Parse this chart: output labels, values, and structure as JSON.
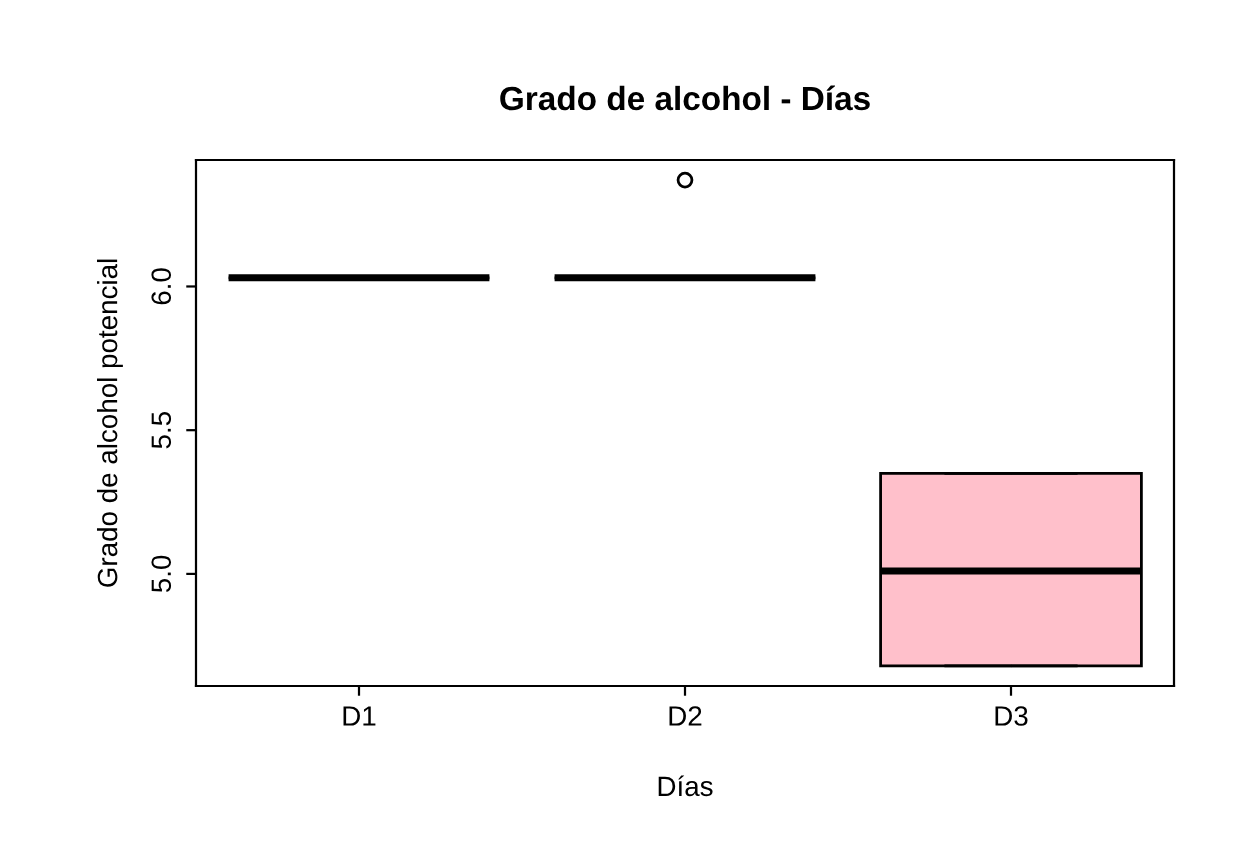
{
  "chart_data": {
    "type": "box",
    "title": "Grado de alcohol - Días",
    "xlabel": "Días",
    "ylabel": "Grado de alcohol potencial",
    "categories": [
      "D1",
      "D2",
      "D3"
    ],
    "boxes": [
      {
        "low": 6.03,
        "q1": 6.03,
        "median": 6.03,
        "q3": 6.03,
        "high": 6.03
      },
      {
        "low": 6.03,
        "q1": 6.03,
        "median": 6.03,
        "q3": 6.03,
        "high": 6.03,
        "outliers": [
          6.37
        ]
      },
      {
        "low": 4.68,
        "q1": 4.68,
        "median": 5.01,
        "q3": 5.35,
        "high": 5.35
      }
    ],
    "colors": [
      null,
      null,
      "#ffc0cb"
    ],
    "ylim": [
      4.61,
      6.44
    ],
    "yticks": [
      {
        "value": 5.0,
        "label": "5.0"
      },
      {
        "value": 5.5,
        "label": "5.5"
      },
      {
        "value": 6.0,
        "label": "6.0"
      }
    ],
    "grid": false,
    "legend": false
  }
}
